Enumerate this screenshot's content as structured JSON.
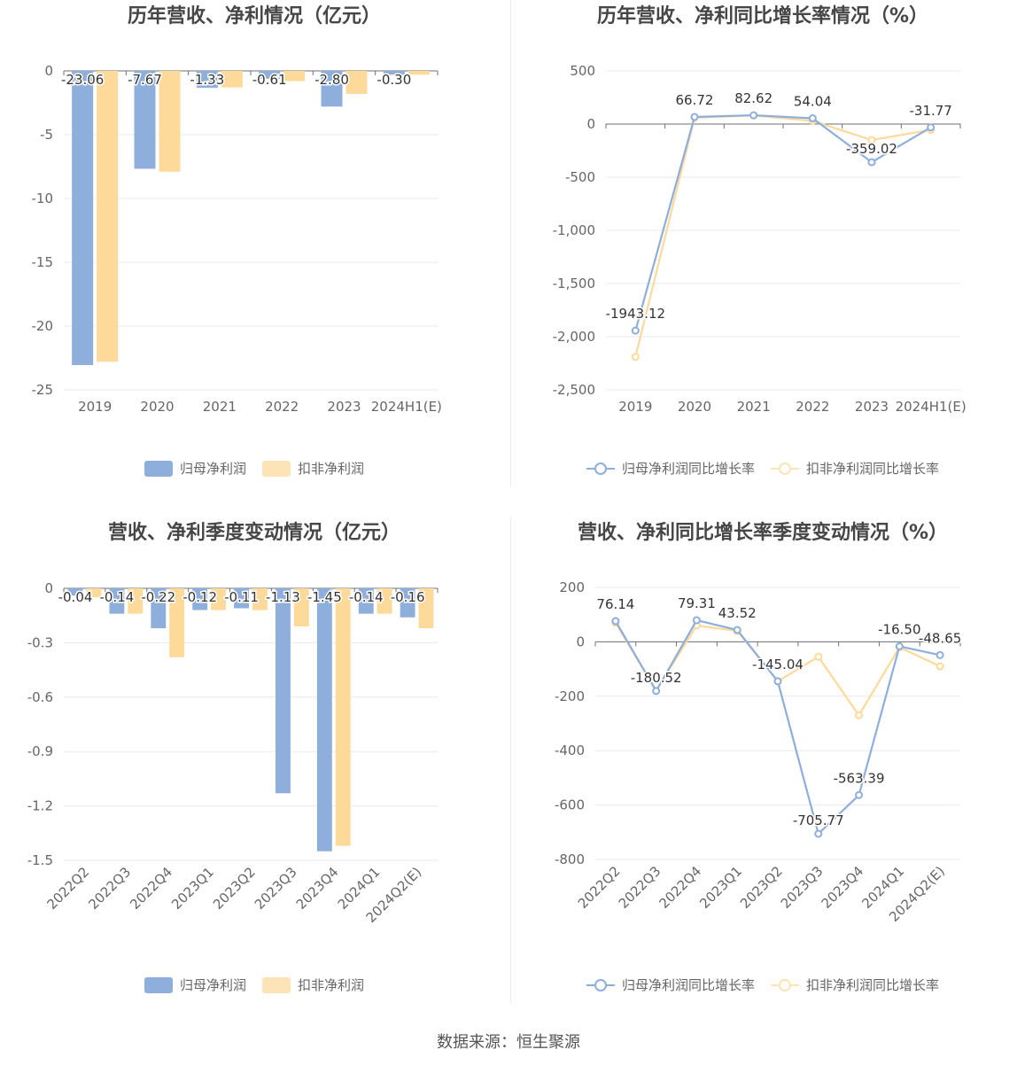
{
  "colors": {
    "primary": "#8eaedc",
    "secondary": "#fdd99a",
    "grid": "#e6e9f1",
    "axis": "#666666",
    "label": "#333333"
  },
  "footer": {
    "source": "数据来源：恒生聚源"
  },
  "chart_data": [
    {
      "type": "bar",
      "title": "历年营收、净利情况（亿元）",
      "categories": [
        "2019",
        "2020",
        "2021",
        "2022",
        "2023",
        "2024H1(E)"
      ],
      "series": [
        {
          "name": "归母净利润",
          "values": [
            -23.06,
            -7.67,
            -1.33,
            -0.61,
            -2.8,
            -0.3
          ]
        },
        {
          "name": "扣非净利润",
          "values": [
            -22.8,
            -7.9,
            -1.3,
            -0.8,
            -1.8,
            -0.3
          ]
        }
      ],
      "data_labels": [
        "-23.06",
        "-7.67",
        "-1.33",
        "-0.61",
        "-2.80",
        "-0.30"
      ],
      "ylim": [
        -25,
        0
      ],
      "yticks": [
        0,
        -5,
        -10,
        -15,
        -20,
        -25
      ],
      "ytick_labels": [
        "0",
        "-5",
        "-10",
        "-15",
        "-20",
        "-25"
      ],
      "grid": true,
      "legend": "bottom"
    },
    {
      "type": "line",
      "title": "历年营收、净利同比增长率情况（%）",
      "categories": [
        "2019",
        "2020",
        "2021",
        "2022",
        "2023",
        "2024H1(E)"
      ],
      "series": [
        {
          "name": "归母净利润同比增长率",
          "values": [
            -1943.12,
            66.72,
            82.62,
            54.04,
            -359.02,
            -31.77
          ]
        },
        {
          "name": "扣非净利润同比增长率",
          "values": [
            -2190,
            60,
            80,
            30,
            -150,
            -55
          ]
        }
      ],
      "data_labels": [
        "-1943.12",
        "66.72",
        "82.62",
        "54.04",
        "-359.02",
        "-31.77"
      ],
      "ylim": [
        -2500,
        500
      ],
      "yticks": [
        500,
        0,
        -500,
        -1000,
        -1500,
        -2000,
        -2500
      ],
      "ytick_labels": [
        "500",
        "0",
        "-500",
        "-1,000",
        "-1,500",
        "-2,000",
        "-2,500"
      ],
      "grid": true,
      "legend": "bottom"
    },
    {
      "type": "bar",
      "title": "营收、净利季度变动情况（亿元）",
      "categories": [
        "2022Q2",
        "2022Q3",
        "2022Q4",
        "2023Q1",
        "2023Q2",
        "2023Q3",
        "2023Q4",
        "2024Q1",
        "2024Q2(E)"
      ],
      "series": [
        {
          "name": "归母净利润",
          "values": [
            -0.04,
            -0.14,
            -0.22,
            -0.12,
            -0.11,
            -1.13,
            -1.45,
            -0.14,
            -0.16
          ]
        },
        {
          "name": "扣非净利润",
          "values": [
            -0.05,
            -0.14,
            -0.38,
            -0.12,
            -0.12,
            -0.21,
            -1.42,
            -0.14,
            -0.22
          ]
        }
      ],
      "data_labels": [
        "-0.04",
        "-0.14",
        "-0.22",
        "-0.12",
        "-0.11",
        "-1.13",
        "-1.45",
        "-0.14",
        "-0.16"
      ],
      "ylim": [
        -1.5,
        0
      ],
      "yticks": [
        0,
        -0.3,
        -0.6,
        -0.9,
        -1.2,
        -1.5
      ],
      "ytick_labels": [
        "0",
        "-0.3",
        "-0.6",
        "-0.9",
        "-1.2",
        "-1.5"
      ],
      "grid": true,
      "legend": "bottom"
    },
    {
      "type": "line",
      "title": "营收、净利同比增长率季度变动情况（%）",
      "categories": [
        "2022Q2",
        "2022Q3",
        "2022Q4",
        "2023Q1",
        "2023Q2",
        "2023Q3",
        "2023Q4",
        "2024Q1",
        "2024Q2(E)"
      ],
      "series": [
        {
          "name": "归母净利润同比增长率",
          "values": [
            76.14,
            -180.52,
            79.31,
            43.52,
            -145.04,
            -705.77,
            -563.39,
            -16.5,
            -48.65
          ]
        },
        {
          "name": "扣非净利润同比增长率",
          "values": [
            70,
            -180,
            60,
            40,
            -145,
            -55,
            -270,
            -20,
            -90
          ]
        }
      ],
      "data_labels": [
        "76.14",
        "-180.52",
        "79.31",
        "43.52",
        "-145.04",
        "-705.77",
        "-563.39",
        "-16.50",
        "-48.65"
      ],
      "ylim": [
        -800,
        200
      ],
      "yticks": [
        200,
        0,
        -200,
        -400,
        -600,
        -800
      ],
      "ytick_labels": [
        "200",
        "0",
        "-200",
        "-400",
        "-600",
        "-800"
      ],
      "grid": true,
      "legend": "bottom"
    }
  ]
}
